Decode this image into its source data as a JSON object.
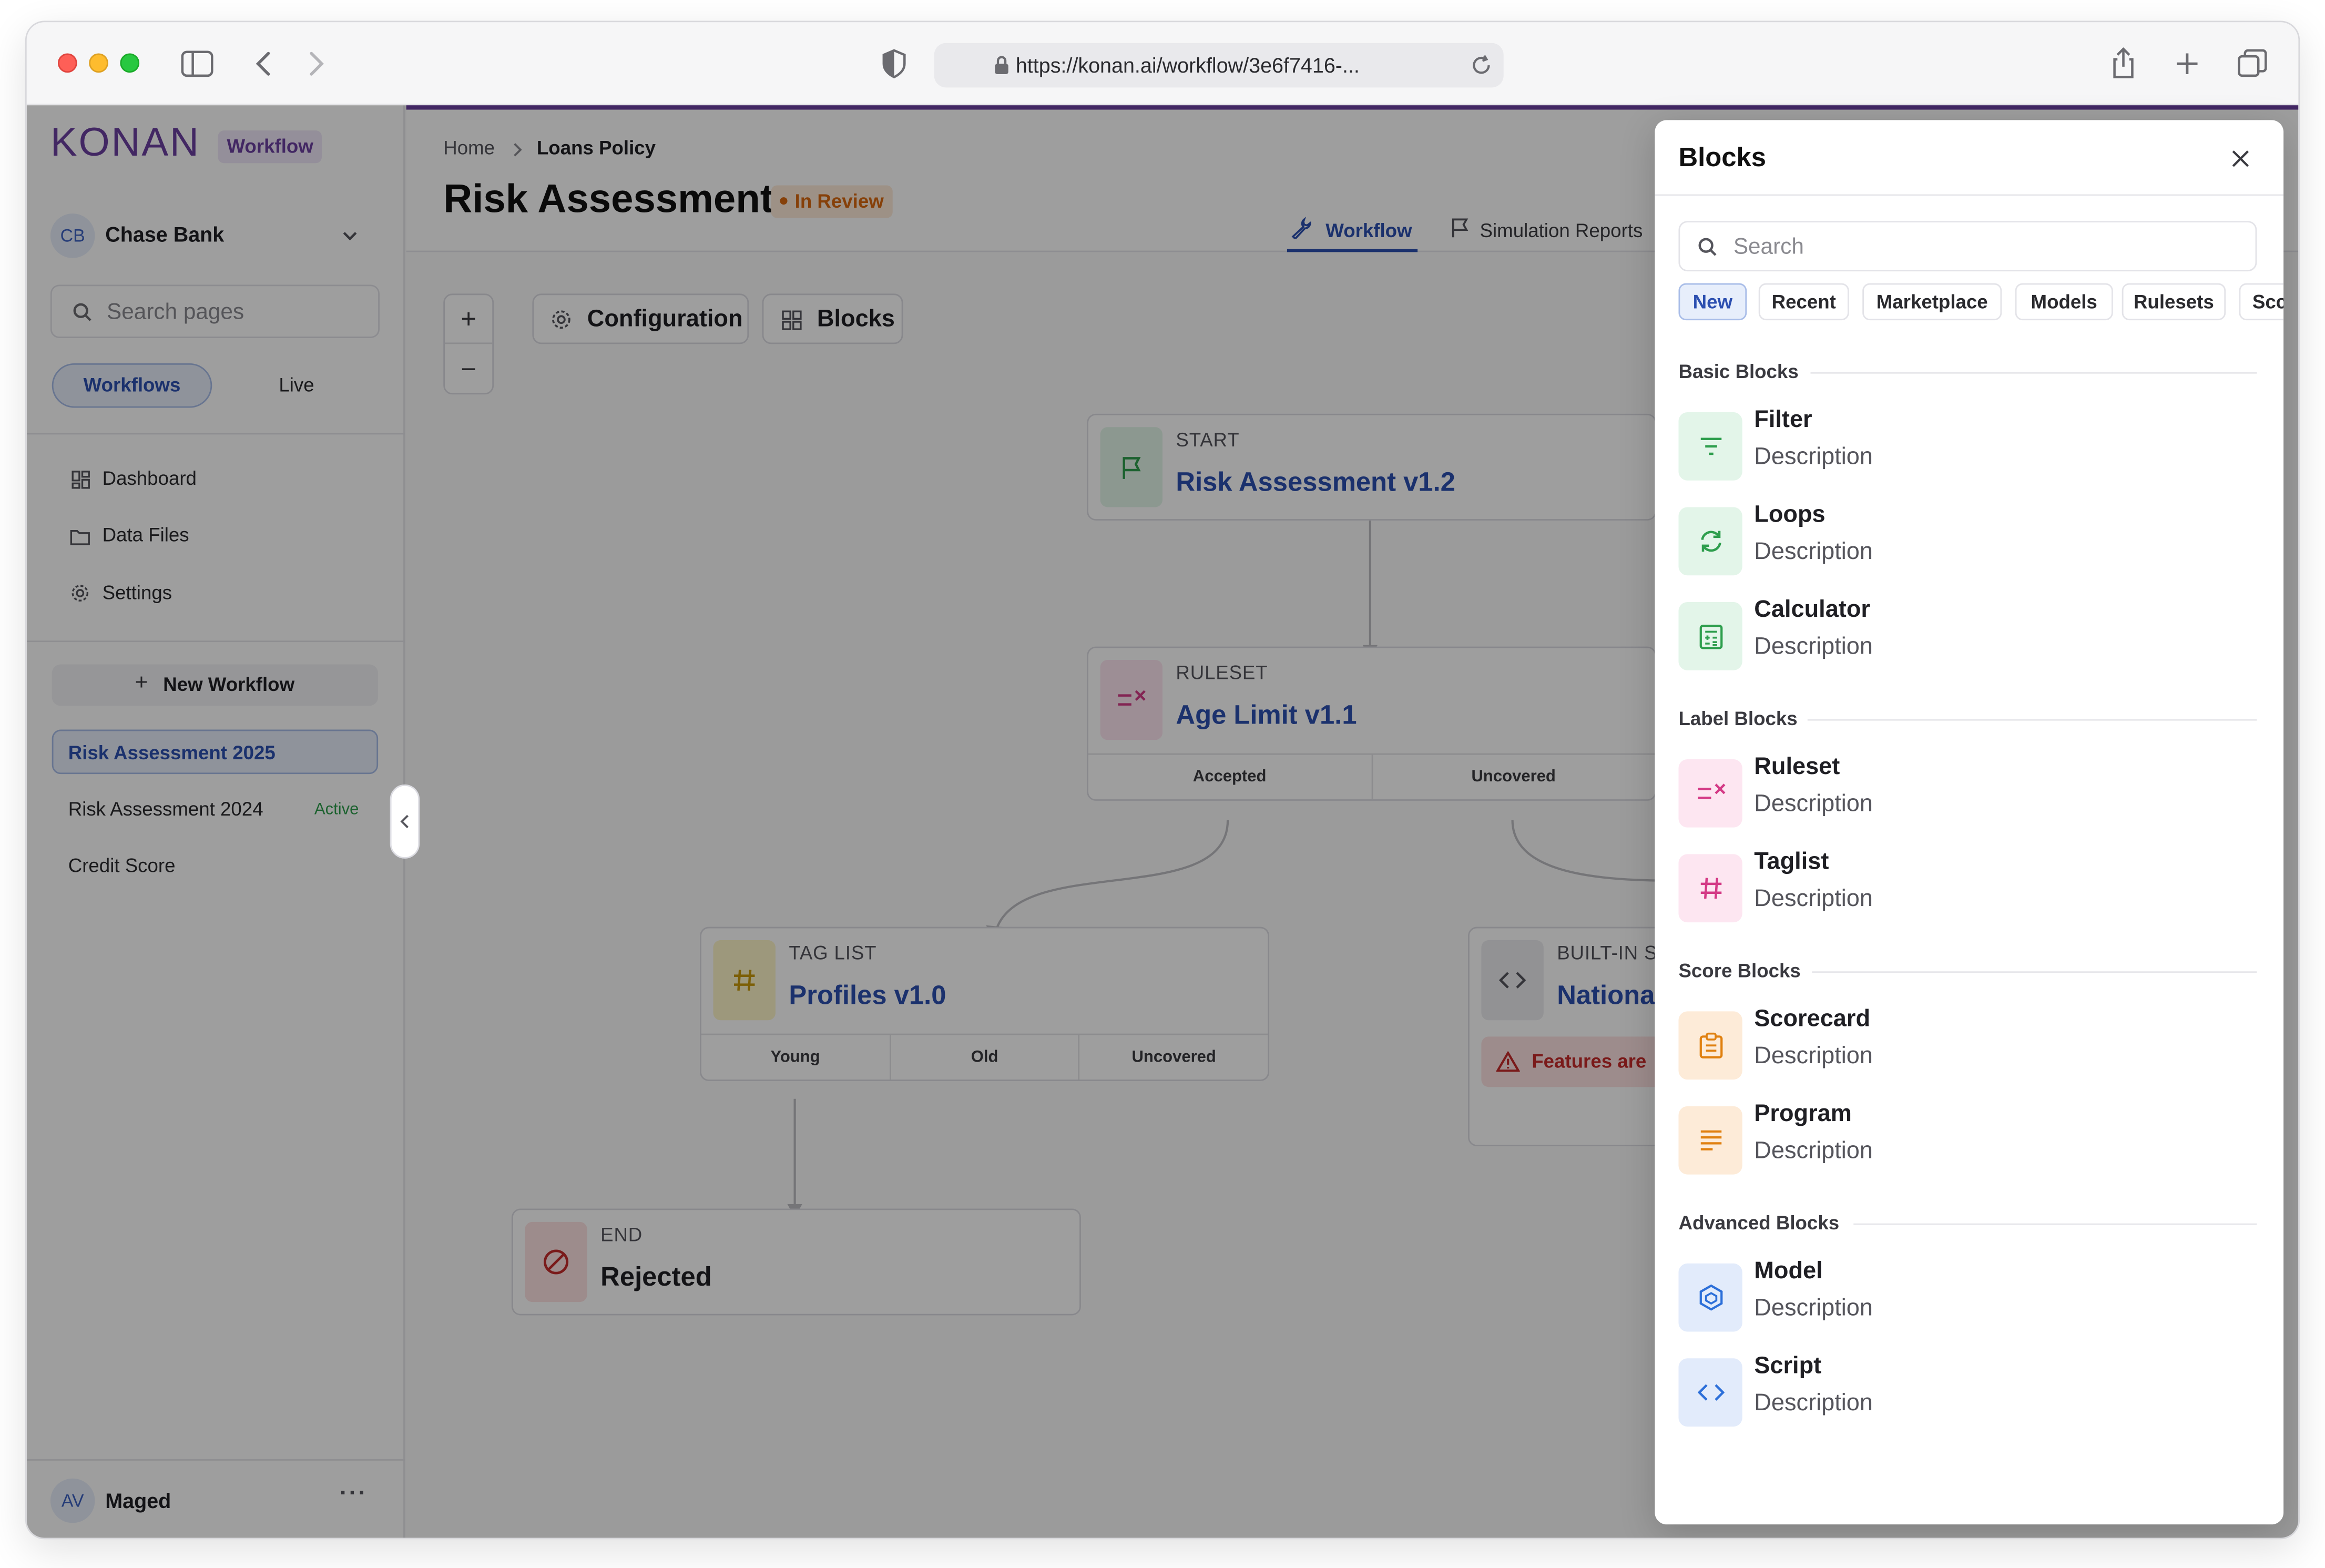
{
  "browser": {
    "url": "https://konan.ai/workflow/3e6f7416-...",
    "icons": [
      "sidebar-toggle-icon",
      "back-icon",
      "forward-icon",
      "shield-icon",
      "lock-icon",
      "reload-icon",
      "share-icon",
      "new-tab-icon",
      "tabs-icon"
    ]
  },
  "sidebar": {
    "logo": "KONAN",
    "product_badge": "Workflow",
    "org": {
      "initials": "CB",
      "name": "Chase Bank"
    },
    "search_placeholder": "Search pages",
    "mode_tabs": [
      "Workflows",
      "Live"
    ],
    "nav": [
      {
        "label": "Dashboard",
        "icon": "dashboard-icon"
      },
      {
        "label": "Data Files",
        "icon": "folder-icon"
      },
      {
        "label": "Settings",
        "icon": "gear-icon"
      }
    ],
    "new_workflow": "New Workflow",
    "workflows": [
      {
        "label": "Risk Assessment 2025",
        "badge": "",
        "selected": true
      },
      {
        "label": "Risk Assessment 2024",
        "badge": "Active",
        "selected": false
      },
      {
        "label": "Credit Score",
        "badge": "",
        "selected": false
      }
    ],
    "user": {
      "initials": "AV",
      "name": "Maged"
    }
  },
  "header": {
    "breadcrumb": [
      "Home",
      "Loans Policy"
    ],
    "title": "Risk Assessment",
    "status": "In Review",
    "tabs": [
      {
        "label": "Workflow",
        "active": true
      },
      {
        "label": "Simulation Reports",
        "active": false
      }
    ]
  },
  "canvas": {
    "toolbar": {
      "zoom_in": "+",
      "zoom_out": "−",
      "configuration": "Configuration",
      "blocks": "Blocks"
    },
    "nodes": {
      "start": {
        "kind": "START",
        "title": "Risk Assessment v1.2"
      },
      "ruleset": {
        "kind": "RULESET",
        "title": "Age Limit v1.1",
        "outputs": [
          "Accepted",
          "Uncovered"
        ]
      },
      "taglist": {
        "kind": "TAG LIST",
        "title": "Profiles v1.0",
        "outputs": [
          "Young",
          "Old",
          "Uncovered"
        ]
      },
      "builtin": {
        "kind": "BUILT-IN S",
        "title": "National",
        "warning": "Features are"
      },
      "end": {
        "kind": "END",
        "title": "Rejected"
      }
    }
  },
  "blocks_panel": {
    "title": "Blocks",
    "search_placeholder": "Search",
    "filters": [
      "New",
      "Recent",
      "Marketplace",
      "Models",
      "Rulesets",
      "Scc"
    ],
    "active_filter": "New",
    "sections": [
      {
        "title": "Basic Blocks",
        "items": [
          {
            "name": "Filter",
            "desc": "Description",
            "icon": "filter-icon"
          },
          {
            "name": "Loops",
            "desc": "Description",
            "icon": "loop-icon"
          },
          {
            "name": "Calculator",
            "desc": "Description",
            "icon": "calculator-icon"
          }
        ]
      },
      {
        "title": "Label Blocks",
        "items": [
          {
            "name": "Ruleset",
            "desc": "Description",
            "icon": "ruleset-icon"
          },
          {
            "name": "Taglist",
            "desc": "Description",
            "icon": "hash-icon"
          }
        ]
      },
      {
        "title": "Score Blocks",
        "items": [
          {
            "name": "Scorecard",
            "desc": "Description",
            "icon": "clipboard-icon"
          },
          {
            "name": "Program",
            "desc": "Description",
            "icon": "lines-icon"
          }
        ]
      },
      {
        "title": "Advanced Blocks",
        "items": [
          {
            "name": "Model",
            "desc": "Description",
            "icon": "cube-icon"
          },
          {
            "name": "Script",
            "desc": "Description",
            "icon": "code-icon"
          }
        ]
      }
    ]
  },
  "colors": {
    "brand": "#6b3fa0",
    "link_blue": "#2c4fb0",
    "review_orange": "#d9680f",
    "active_green": "#2e9e4d",
    "green_tint": "#e3f5e9",
    "pink_tint": "#fde6f1",
    "orange_tint": "#fdebd8",
    "blue_tint": "#e2ebfb"
  }
}
